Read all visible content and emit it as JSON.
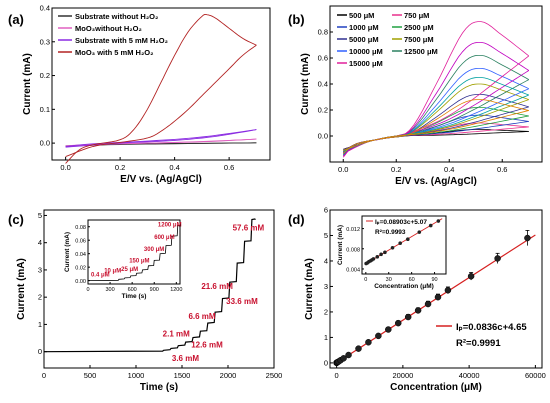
{
  "chart_data": [
    {
      "id": "a",
      "type": "line",
      "panel_label": "(a)",
      "xlabel": "E/V vs. (Ag/AgCl)",
      "ylabel": "Current (mA)",
      "xlim": [
        -0.05,
        0.75
      ],
      "ylim": [
        -0.05,
        0.4
      ],
      "xticks": [
        0.0,
        0.2,
        0.4,
        0.6
      ],
      "yticks": [
        0.0,
        0.1,
        0.2,
        0.3,
        0.4
      ],
      "xtick_labels": [
        "0.0",
        "0.2",
        "0.4",
        "0.6"
      ],
      "ytick_labels": [
        "0.0",
        "0.1",
        "0.2",
        "0.3",
        "0.4"
      ],
      "legend_position": "top-left",
      "series": [
        {
          "name": "Substrate without H₂O₂",
          "color": "#333333",
          "fwd": [
            [
              0.0,
              -0.01
            ],
            [
              0.2,
              -0.003
            ],
            [
              0.4,
              -0.001
            ],
            [
              0.6,
              0.0
            ],
            [
              0.7,
              0.001
            ]
          ],
          "rev": [
            [
              0.7,
              0.001
            ],
            [
              0.4,
              -0.002
            ],
            [
              0.2,
              -0.004
            ],
            [
              0.0,
              -0.008
            ]
          ]
        },
        {
          "name": "MoO₃without H₂O₂",
          "color": "#e060c0",
          "fwd": [
            [
              0.0,
              -0.01
            ],
            [
              0.2,
              -0.002
            ],
            [
              0.4,
              0.002
            ],
            [
              0.6,
              0.008
            ],
            [
              0.7,
              0.012
            ]
          ],
          "rev": [
            [
              0.7,
              0.012
            ],
            [
              0.5,
              0.004
            ],
            [
              0.3,
              0.0
            ],
            [
              0.1,
              -0.004
            ],
            [
              0.0,
              -0.008
            ]
          ]
        },
        {
          "name": "Substrate with 5 mM H₂O₂",
          "color": "#8a2be2",
          "fwd": [
            [
              0.0,
              -0.012
            ],
            [
              0.2,
              0.0
            ],
            [
              0.4,
              0.008
            ],
            [
              0.55,
              0.02
            ],
            [
              0.7,
              0.04
            ]
          ],
          "rev": [
            [
              0.7,
              0.04
            ],
            [
              0.5,
              0.018
            ],
            [
              0.3,
              0.006
            ],
            [
              0.1,
              -0.002
            ],
            [
              0.0,
              -0.01
            ]
          ]
        },
        {
          "name": "MoO₃ with 5 mM H₂O₂",
          "color": "#b22222",
          "fwd": [
            [
              0.0,
              -0.06
            ],
            [
              0.05,
              -0.02
            ],
            [
              0.1,
              -0.005
            ],
            [
              0.2,
              0.01
            ],
            [
              0.25,
              0.04
            ],
            [
              0.3,
              0.1
            ],
            [
              0.35,
              0.18
            ],
            [
              0.4,
              0.26
            ],
            [
              0.45,
              0.33
            ],
            [
              0.5,
              0.375
            ],
            [
              0.52,
              0.38
            ],
            [
              0.55,
              0.37
            ],
            [
              0.6,
              0.34
            ],
            [
              0.65,
              0.31
            ],
            [
              0.7,
              0.29
            ]
          ],
          "rev": [
            [
              0.7,
              0.29
            ],
            [
              0.65,
              0.26
            ],
            [
              0.6,
              0.22
            ],
            [
              0.55,
              0.18
            ],
            [
              0.5,
              0.14
            ],
            [
              0.45,
              0.1
            ],
            [
              0.4,
              0.065
            ],
            [
              0.35,
              0.035
            ],
            [
              0.3,
              0.015
            ],
            [
              0.2,
              0.002
            ],
            [
              0.1,
              -0.01
            ],
            [
              0.0,
              -0.04
            ]
          ]
        }
      ]
    },
    {
      "id": "b",
      "type": "line",
      "panel_label": "(b)",
      "xlabel": "E/V vs. (Ag/AgCl)",
      "ylabel": "Current (mA)",
      "xlim": [
        -0.05,
        0.75
      ],
      "ylim": [
        -0.2,
        1.0
      ],
      "xticks": [
        0.0,
        0.2,
        0.4,
        0.6
      ],
      "yticks": [
        0.0,
        0.2,
        0.4,
        0.6,
        0.8
      ],
      "xtick_labels": [
        "0.0",
        "0.2",
        "0.4",
        "0.6"
      ],
      "ytick_labels": [
        "0.0",
        "0.2",
        "0.4",
        "0.6",
        "0.8"
      ],
      "legend_position": "top-left",
      "series": [
        {
          "name": "500 μM",
          "color": "#000000",
          "peak": 0.05
        },
        {
          "name": "750 μM",
          "color": "#e8308c",
          "peak": 0.1
        },
        {
          "name": "1000 μM",
          "color": "#2040c0",
          "peak": 0.16
        },
        {
          "name": "2500 μM",
          "color": "#20a040",
          "peak": 0.22
        },
        {
          "name": "5000 μM",
          "color": "#303090",
          "peak": 0.32
        },
        {
          "name": "7500 μM",
          "color": "#a0a000",
          "peak": 0.4
        },
        {
          "name": "10000 μM",
          "color": "#3060ff",
          "peak": 0.52
        },
        {
          "name": "12500 μM",
          "color": "#2a8060",
          "peak": 0.62
        },
        {
          "name": "15000 μM",
          "color": "#e0209a",
          "peak": 0.88
        }
      ],
      "extra_curve_colors": [
        "#c000c0",
        "#00a0a0",
        "#e08000"
      ],
      "extra_curve_peaks": [
        0.72,
        0.45,
        0.28
      ]
    },
    {
      "id": "c",
      "type": "line",
      "panel_label": "(c)",
      "xlabel": "Time (s)",
      "ylabel": "Current (mA)",
      "xlim": [
        0,
        2500
      ],
      "ylim": [
        -0.6,
        5.2
      ],
      "xticks": [
        0,
        500,
        1000,
        1500,
        2000,
        2500
      ],
      "yticks": [
        0,
        1,
        2,
        3,
        4,
        5
      ],
      "xtick_labels": [
        "0",
        "500",
        "1000",
        "1500",
        "2000",
        "2500"
      ],
      "ytick_labels": [
        "0",
        "1",
        "2",
        "3",
        "4",
        "5"
      ],
      "steps_t": [
        0,
        1300,
        1380,
        1460,
        1540,
        1620,
        1700,
        1780,
        1860,
        1940,
        2020,
        2100,
        2180,
        2260,
        2300
      ],
      "steps_i": [
        0.0,
        0.05,
        0.12,
        0.22,
        0.35,
        0.52,
        0.75,
        1.05,
        1.45,
        1.95,
        2.55,
        3.25,
        4.05,
        4.85,
        4.85
      ],
      "annotations": [
        {
          "text": "2.1 mM",
          "x": 1290,
          "y": 0.55
        },
        {
          "text": "3.6 mM",
          "x": 1390,
          "y": -0.35
        },
        {
          "text": "6.6 mM",
          "x": 1570,
          "y": 1.2
        },
        {
          "text": "12.6 mM",
          "x": 1600,
          "y": 0.15
        },
        {
          "text": "21.6 mM",
          "x": 1710,
          "y": 2.3
        },
        {
          "text": "33.6 mM",
          "x": 1980,
          "y": 1.75
        },
        {
          "text": "57.6 mM",
          "x": 2050,
          "y": 4.45
        }
      ],
      "inset": {
        "xlabel": "Time (s)",
        "ylabel": "Current (mA)",
        "xlim": [
          0,
          1250
        ],
        "ylim": [
          -0.005,
          0.09
        ],
        "xticks": [
          0,
          300,
          600,
          900,
          1200
        ],
        "yticks": [
          0.0,
          0.02,
          0.04,
          0.06,
          0.08
        ],
        "xtick_labels": [
          "0",
          "300",
          "600",
          "900",
          "1200"
        ],
        "ytick_labels": [
          "0.00",
          "0.02",
          "0.04",
          "0.06",
          "0.08"
        ],
        "steps_t": [
          0,
          420,
          500,
          580,
          660,
          740,
          820,
          900,
          980,
          1060,
          1140,
          1220
        ],
        "steps_i": [
          0.0,
          0.002,
          0.004,
          0.007,
          0.011,
          0.016,
          0.022,
          0.03,
          0.04,
          0.052,
          0.066,
          0.082
        ],
        "annotations": [
          {
            "text": "0.4 μM",
            "x": 40,
            "y": 0.006
          },
          {
            "text": "10 μM",
            "x": 220,
            "y": 0.012
          },
          {
            "text": "25 μM",
            "x": 450,
            "y": 0.014
          },
          {
            "text": "150 μM",
            "x": 560,
            "y": 0.027
          },
          {
            "text": "300 μM",
            "x": 760,
            "y": 0.044
          },
          {
            "text": "600 μM",
            "x": 900,
            "y": 0.062
          },
          {
            "text": "1200 μM",
            "x": 950,
            "y": 0.08
          }
        ]
      }
    },
    {
      "id": "d",
      "type": "scatter",
      "panel_label": "(d)",
      "xlabel": "Concentration (μM)",
      "ylabel": "Current (mA)",
      "xlim": [
        -2000,
        62000
      ],
      "ylim": [
        -0.2,
        6
      ],
      "xticks": [
        0,
        20000,
        40000,
        60000
      ],
      "yticks": [
        0,
        1,
        2,
        3,
        4,
        5,
        6
      ],
      "xtick_labels": [
        "0",
        "20000",
        "40000",
        "60000"
      ],
      "ytick_labels": [
        "0",
        "1",
        "2",
        "3",
        "4",
        "5",
        "6"
      ],
      "fit_equation": "Iₚ=0.0836c+4.65",
      "r2": "R²=0.9991",
      "fit_slope_ua_per_um": 0.0836,
      "fit_intercept_ua": 4.65,
      "x": [
        0.4,
        10,
        25,
        150,
        300,
        600,
        1200,
        2100,
        3600,
        6600,
        9600,
        12600,
        15600,
        18600,
        21600,
        24600,
        27600,
        30600,
        33600,
        40600,
        48600,
        57600
      ],
      "y": [
        0.005,
        0.006,
        0.007,
        0.017,
        0.03,
        0.055,
        0.105,
        0.18,
        0.31,
        0.56,
        0.81,
        1.06,
        1.31,
        1.56,
        1.8,
        2.06,
        2.31,
        2.58,
        2.85,
        3.4,
        4.1,
        4.9
      ],
      "err": [
        0.01,
        0.01,
        0.01,
        0.01,
        0.01,
        0.02,
        0.02,
        0.03,
        0.04,
        0.05,
        0.06,
        0.07,
        0.08,
        0.09,
        0.1,
        0.1,
        0.11,
        0.12,
        0.13,
        0.15,
        0.2,
        0.3
      ],
      "inset": {
        "xlabel": "Concentration (μM)",
        "ylabel": "Current (mA)",
        "fit_equation": "Iₚ=0.08903c+5.07",
        "r2": "R²=0.9993",
        "xlim": [
          -5,
          105
        ],
        "ylim": [
          0.003,
          0.0145
        ],
        "xticks": [
          0,
          30,
          60,
          90
        ],
        "yticks": [
          0.004,
          0.008,
          0.012
        ],
        "xtick_labels": [
          "0",
          "30",
          "60",
          "90"
        ],
        "ytick_labels": [
          "0.004",
          "0.008",
          "0.012"
        ],
        "x": [
          0.4,
          2,
          4,
          6,
          8,
          10,
          15,
          20,
          25,
          35,
          45,
          55,
          70,
          85,
          95
        ],
        "y": [
          0.00508,
          0.0052,
          0.00545,
          0.0056,
          0.0058,
          0.006,
          0.0064,
          0.0069,
          0.0073,
          0.0082,
          0.0091,
          0.0099,
          0.0113,
          0.0126,
          0.0135
        ],
        "fit_slope_ua_per_um": 0.08903,
        "fit_intercept_ua": 5.07
      }
    }
  ]
}
